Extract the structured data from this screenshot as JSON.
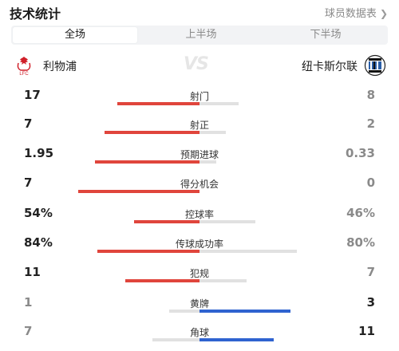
{
  "header": {
    "title": "技术统计",
    "player_stats_link": "球员数据表"
  },
  "tabs": [
    {
      "label": "全场",
      "active": true
    },
    {
      "label": "上半场",
      "active": false
    },
    {
      "label": "下半场",
      "active": false
    }
  ],
  "teams": {
    "home": "利物浦",
    "away": "纽卡斯尔联",
    "vs": "VS"
  },
  "colors": {
    "home_win": "#e0453c",
    "away_win": "#2f63d0",
    "lose": "#e1e1e1",
    "text": "#222222",
    "muted": "#8a8a8a"
  },
  "stats": [
    {
      "label": "射门",
      "home": "17",
      "away": "8",
      "home_share": 0.68,
      "away_share": 0.32,
      "home_bar_color": "red",
      "away_bar_color": "gray",
      "home_text_color": "dark",
      "away_text_color": "muted"
    },
    {
      "label": "射正",
      "home": "7",
      "away": "2",
      "home_share": 0.78,
      "away_share": 0.22,
      "home_bar_color": "red",
      "away_bar_color": "gray",
      "home_text_color": "dark",
      "away_text_color": "muted"
    },
    {
      "label": "预期进球",
      "home": "1.95",
      "away": "0.33",
      "home_share": 0.86,
      "away_share": 0.14,
      "home_bar_color": "red",
      "away_bar_color": "gray",
      "home_text_color": "dark",
      "away_text_color": "muted"
    },
    {
      "label": "得分机会",
      "home": "7",
      "away": "0",
      "home_share": 1.0,
      "away_share": 0.0,
      "home_bar_color": "red",
      "away_bar_color": "gray",
      "home_text_color": "dark",
      "away_text_color": "muted"
    },
    {
      "label": "控球率",
      "home": "54%",
      "away": "46%",
      "home_share": 0.54,
      "away_share": 0.46,
      "home_bar_color": "red",
      "away_bar_color": "gray",
      "home_text_color": "dark",
      "away_text_color": "muted"
    },
    {
      "label": "传球成功率",
      "home": "84%",
      "away": "80%",
      "home_share": 0.84,
      "away_share": 0.8,
      "home_bar_color": "red",
      "away_bar_color": "gray",
      "home_text_color": "dark",
      "away_text_color": "muted"
    },
    {
      "label": "犯规",
      "home": "11",
      "away": "7",
      "home_share": 0.61,
      "away_share": 0.39,
      "home_bar_color": "red",
      "away_bar_color": "gray",
      "home_text_color": "dark",
      "away_text_color": "muted"
    },
    {
      "label": "黄牌",
      "home": "1",
      "away": "3",
      "home_share": 0.25,
      "away_share": 0.75,
      "home_bar_color": "gray",
      "away_bar_color": "blue",
      "home_text_color": "muted",
      "away_text_color": "dark"
    },
    {
      "label": "角球",
      "home": "7",
      "away": "11",
      "home_share": 0.39,
      "away_share": 0.61,
      "home_bar_color": "gray",
      "away_bar_color": "blue",
      "home_text_color": "muted",
      "away_text_color": "dark"
    }
  ],
  "icons": {
    "home_crest": "liverpool-crest-icon",
    "away_crest": "newcastle-crest-icon",
    "link_chevron": "chevron-right-icon"
  }
}
